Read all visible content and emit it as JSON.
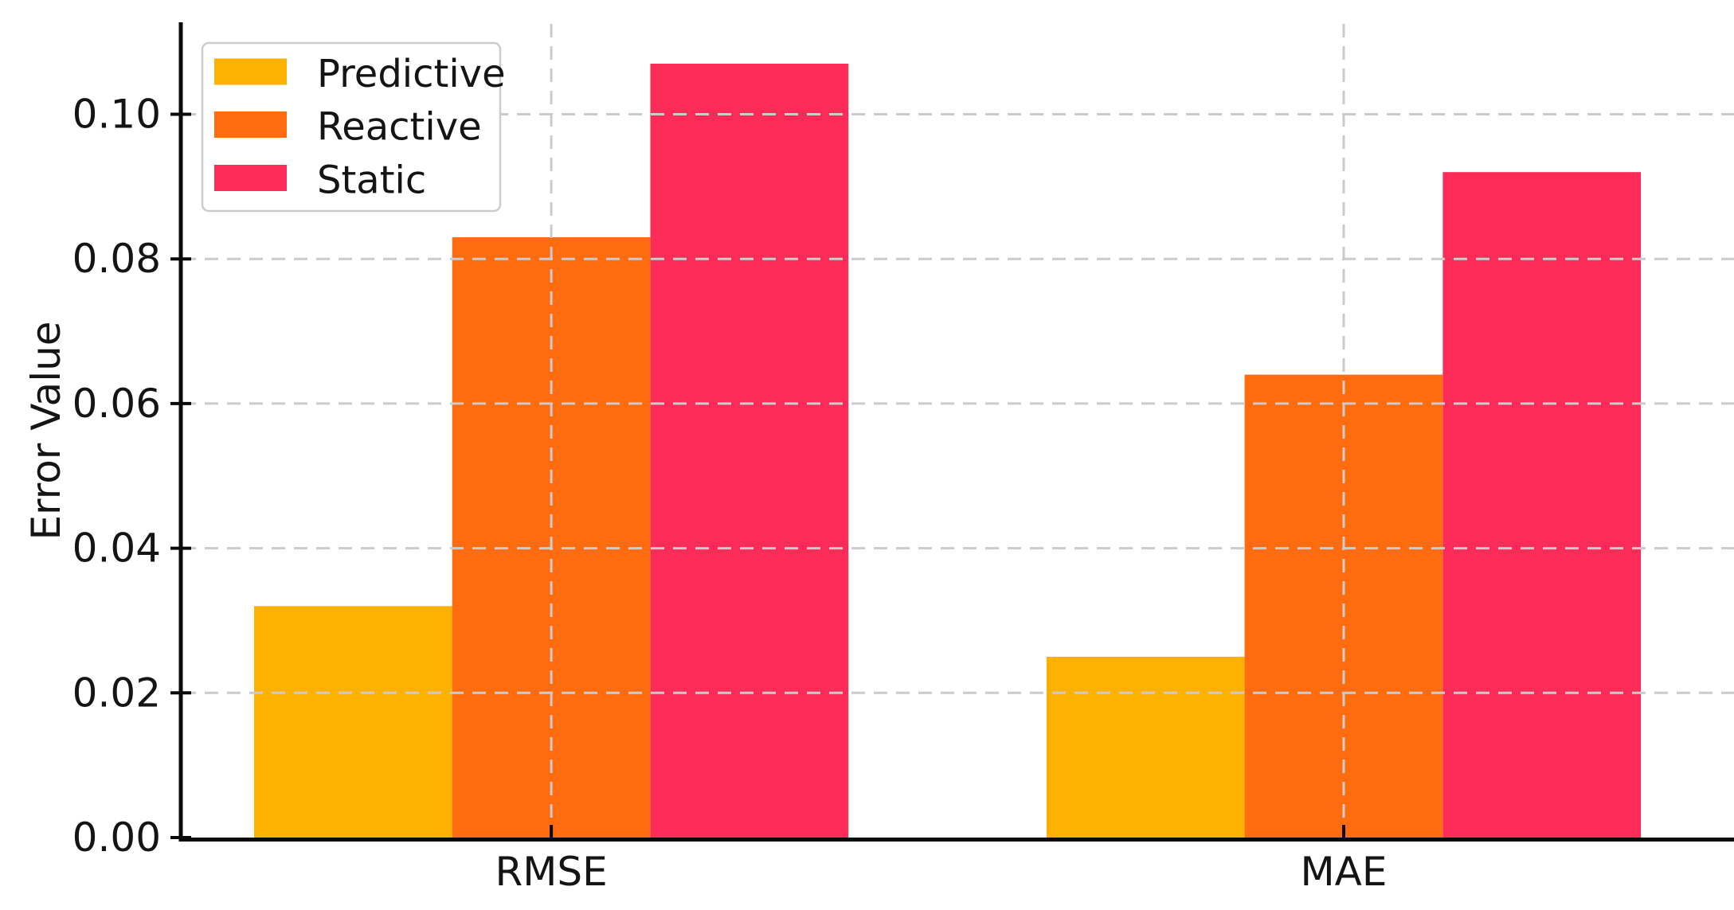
{
  "chart_data": {
    "type": "bar",
    "title": "",
    "categories": [
      "RMSE",
      "MAE"
    ],
    "series": [
      {
        "name": "Predictive",
        "color": "#FCB103",
        "values": [
          0.032,
          0.025
        ]
      },
      {
        "name": "Reactive",
        "color": "#FF6B0F",
        "values": [
          0.083,
          0.064
        ]
      },
      {
        "name": "Static",
        "color": "#FD2B57",
        "values": [
          0.107,
          0.092
        ]
      }
    ],
    "xlabel": "",
    "ylabel": "Error Value",
    "yticks": [
      0,
      0.02,
      0.04,
      0.06,
      0.08,
      0.1
    ],
    "ytick_labels": [
      "0.00",
      "0.02",
      "0.04",
      "0.06",
      "0.08",
      "0.10"
    ],
    "ylim": [
      0,
      0.1125
    ],
    "bar_width": 0.25,
    "legend": {
      "position": "upper left",
      "entries": [
        "Predictive",
        "Reactive",
        "Static"
      ]
    },
    "grid": {
      "style": "dashed",
      "axes": "both",
      "above_bars": true,
      "color": "#cbcbcb"
    },
    "colors": {
      "axis": "#0a0a0a",
      "text": "#141414",
      "background": "#ffffff",
      "legend_border": "#cccccc",
      "legend_background": "#ffffff"
    }
  }
}
